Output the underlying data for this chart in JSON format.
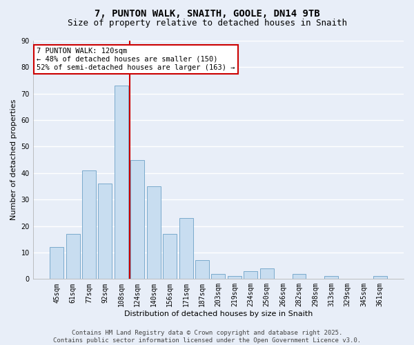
{
  "title": "7, PUNTON WALK, SNAITH, GOOLE, DN14 9TB",
  "subtitle": "Size of property relative to detached houses in Snaith",
  "xlabel": "Distribution of detached houses by size in Snaith",
  "ylabel": "Number of detached properties",
  "categories": [
    "45sqm",
    "61sqm",
    "77sqm",
    "92sqm",
    "108sqm",
    "124sqm",
    "140sqm",
    "156sqm",
    "171sqm",
    "187sqm",
    "203sqm",
    "219sqm",
    "234sqm",
    "250sqm",
    "266sqm",
    "282sqm",
    "298sqm",
    "313sqm",
    "329sqm",
    "345sqm",
    "361sqm"
  ],
  "values": [
    12,
    17,
    41,
    36,
    73,
    45,
    35,
    17,
    23,
    7,
    2,
    1,
    3,
    4,
    0,
    2,
    0,
    1,
    0,
    0,
    1
  ],
  "bar_color": "#c8ddf0",
  "bar_edge_color": "#7aaacc",
  "vline_color": "#cc0000",
  "vline_pos": 4.5,
  "annotation_line1": "7 PUNTON WALK: 120sqm",
  "annotation_line2": "← 48% of detached houses are smaller (150)",
  "annotation_line3": "52% of semi-detached houses are larger (163) →",
  "annotation_box_color": "#ffffff",
  "annotation_box_edge": "#cc0000",
  "ylim": [
    0,
    90
  ],
  "yticks": [
    0,
    10,
    20,
    30,
    40,
    50,
    60,
    70,
    80,
    90
  ],
  "bg_color": "#e8eef8",
  "grid_color": "#ffffff",
  "footer": "Contains HM Land Registry data © Crown copyright and database right 2025.\nContains public sector information licensed under the Open Government Licence v3.0.",
  "title_fontsize": 10,
  "subtitle_fontsize": 9,
  "axis_label_fontsize": 8,
  "tick_fontsize": 7,
  "annotation_fontsize": 7.5,
  "footer_fontsize": 6.5
}
